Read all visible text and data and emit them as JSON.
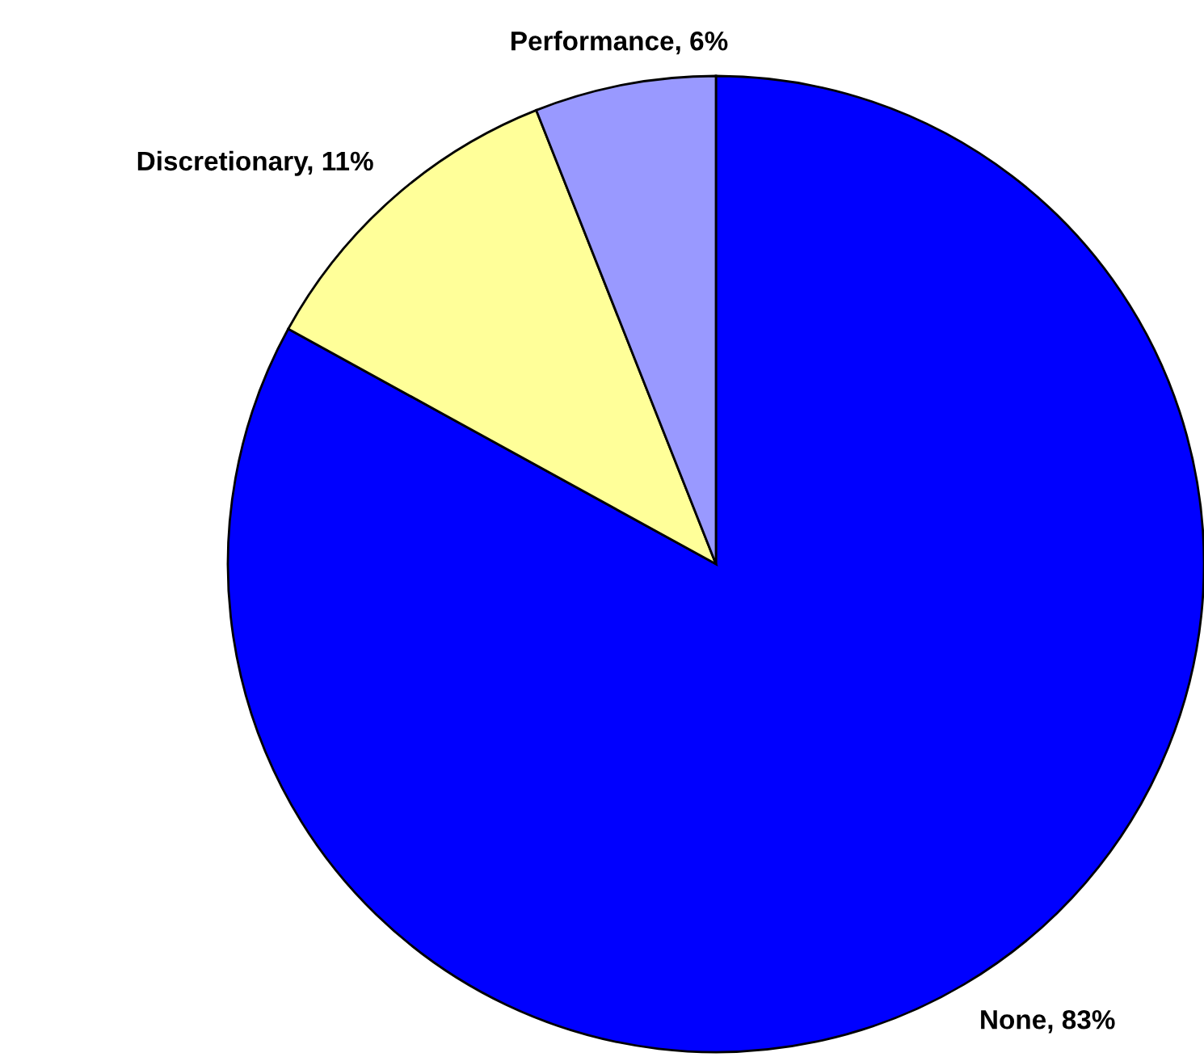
{
  "chart_data": {
    "type": "pie",
    "categories": [
      "None",
      "Discretionary",
      "Performance"
    ],
    "values": [
      83,
      11,
      6
    ],
    "colors": [
      "#0000ff",
      "#ffff99",
      "#9999ff"
    ],
    "value_labels": [
      "83%",
      "11%",
      "6%"
    ]
  }
}
